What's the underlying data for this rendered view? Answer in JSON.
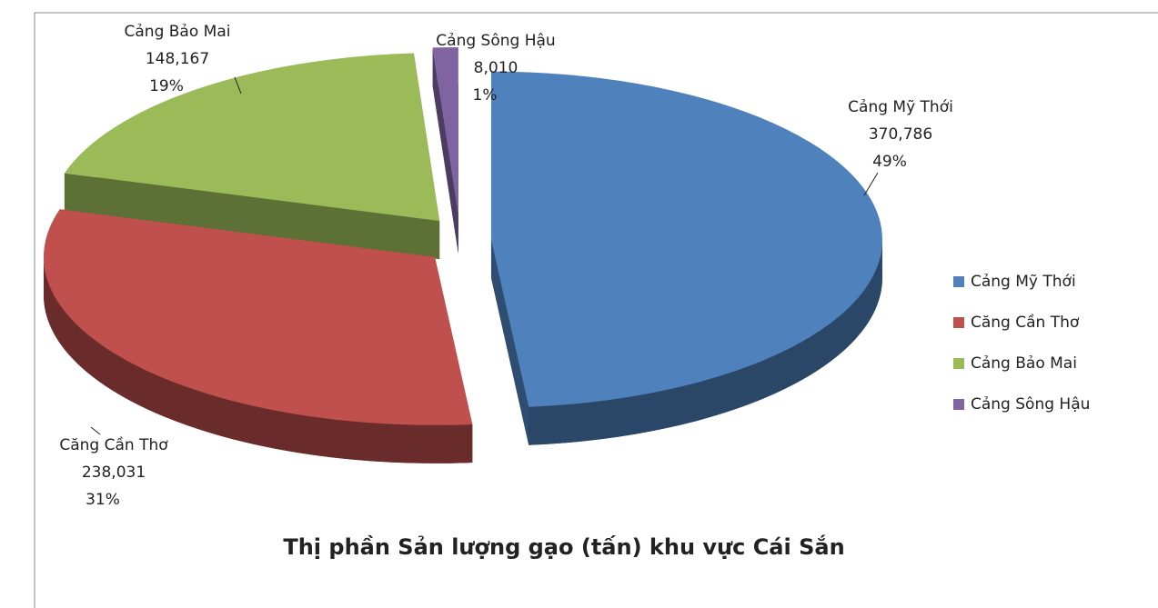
{
  "chart_data": {
    "type": "pie3d",
    "title": "Thị phần Sản lượng gạo (tấn) khu vực Cái Sắn",
    "categories": [
      "Cảng Mỹ Thới",
      "Căng Cần Thơ",
      "Cảng Bảo Mai",
      "Cảng Sông Hậu"
    ],
    "values": [
      370786,
      238031,
      148167,
      8010
    ],
    "value_labels": [
      "370,786",
      "238,031",
      "148,167",
      "8,010"
    ],
    "percent_labels": [
      "49%",
      "31%",
      "19%",
      "1%"
    ],
    "colors": [
      "#4f81bd",
      "#c0504d",
      "#9bbb59",
      "#8064a2"
    ],
    "legend": "right"
  }
}
